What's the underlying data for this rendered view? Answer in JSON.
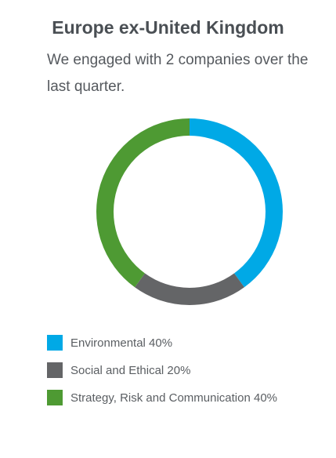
{
  "title": "Europe ex-United Kingdom",
  "subtitle": "We engaged with 2 companies over the last quarter.",
  "chart_data": {
    "type": "pie",
    "donut": true,
    "title": "Europe ex-United Kingdom",
    "series": [
      {
        "name": "Environmental",
        "value": 40,
        "color": "#00a9e6"
      },
      {
        "name": "Social and Ethical",
        "value": 20,
        "color": "#646567"
      },
      {
        "name": "Strategy, Risk and Communication",
        "value": 40,
        "color": "#4e9a33"
      }
    ]
  },
  "legend": [
    {
      "label": "Environmental 40%",
      "color": "#00a9e6"
    },
    {
      "label": "Social and Ethical 20%",
      "color": "#646567"
    },
    {
      "label": "Strategy, Risk and Communication 40%",
      "color": "#4e9a33"
    }
  ]
}
